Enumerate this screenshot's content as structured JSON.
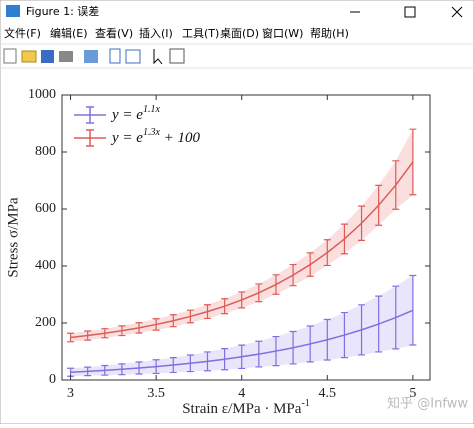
{
  "window": {
    "title": "Figure 1: 误差",
    "menus": [
      "文件(F)",
      "编辑(E)",
      "查看(V)",
      "插入(I)",
      "工具(T)",
      "桌面(D)",
      "窗口(W)",
      "帮助(H)"
    ]
  },
  "watermark": "知乎 @Infww",
  "chart_data": {
    "type": "errorbar",
    "xlabel": "Strain ε/MPa · MPa^{-1}",
    "ylabel": "Stress σ/MPa",
    "x": [
      3.0,
      3.1,
      3.2,
      3.3,
      3.4,
      3.5,
      3.6,
      3.7,
      3.8,
      3.9,
      4.0,
      4.1,
      4.2,
      4.3,
      4.4,
      4.5,
      4.6,
      4.7,
      4.8,
      4.9,
      5.0
    ],
    "xlim": [
      2.95,
      5.1
    ],
    "xticks": [
      3,
      3.5,
      4,
      4.5,
      5
    ],
    "ylim": [
      0,
      1000
    ],
    "yticks": [
      0,
      200,
      400,
      600,
      800,
      1000
    ],
    "legend": "upper left",
    "series": [
      {
        "name": "y = e^{1.1x}",
        "color": "#7f70e0",
        "fill": "#e9e5fb",
        "values": [
          27.1,
          30.3,
          33.8,
          37.7,
          42.1,
          47.0,
          52.5,
          58.6,
          65.4,
          73.0,
          81.5,
          90.9,
          101.5,
          113.3,
          126.5,
          141.2,
          157.6,
          175.9,
          196.4,
          219.2,
          244.7
        ],
        "errors": [
          14,
          15,
          17,
          19,
          21,
          24,
          26,
          29,
          33,
          37,
          41,
          45,
          51,
          57,
          63,
          71,
          79,
          88,
          98,
          110,
          122
        ]
      },
      {
        "name": "y = e^{1.3x} + 100",
        "color": "#dd5c58",
        "fill": "#fbdede",
        "values": [
          149,
          156,
          164,
          173,
          183,
          195,
          208,
          223,
          240,
          259,
          281,
          306,
          335,
          368,
          405,
          447,
          495,
          550,
          613,
          684,
          765
        ],
        "errors": [
          15,
          16,
          16,
          17,
          18,
          20,
          21,
          22,
          24,
          26,
          28,
          31,
          34,
          37,
          41,
          45,
          52,
          60,
          70,
          85,
          115
        ]
      }
    ]
  }
}
